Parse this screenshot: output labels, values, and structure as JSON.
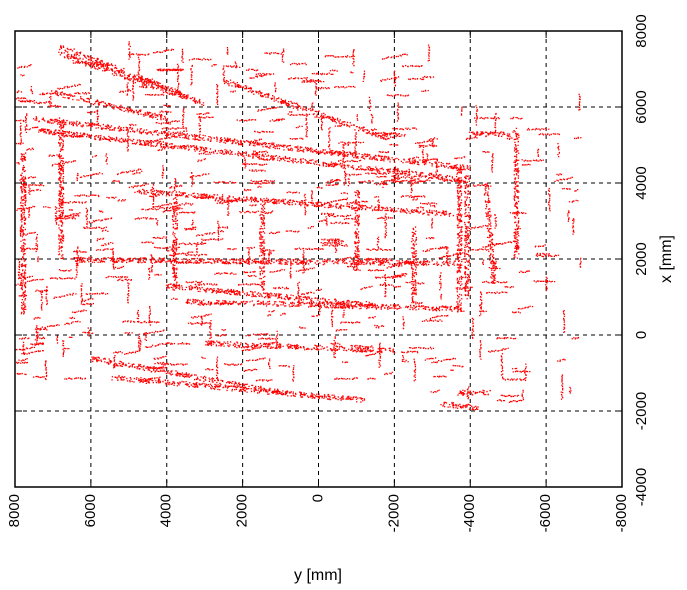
{
  "chart_data": {
    "type": "scatter",
    "title": "",
    "xlabel": "y [mm]",
    "ylabel": "x [mm]",
    "x_axis": {
      "quantity": "y",
      "range": [
        8000,
        -8000
      ],
      "ticks": [
        8000,
        6000,
        4000,
        2000,
        0,
        -2000,
        -4000,
        -6000,
        -8000
      ],
      "tick_labels": [
        "8000",
        "6000",
        "4000",
        "2000",
        "0",
        "-2000",
        "-4000",
        "-6000",
        "-8000"
      ],
      "direction": "decreasing left-to-right"
    },
    "y_axis": {
      "quantity": "x",
      "range": [
        -4000,
        8000
      ],
      "ticks": [
        -4000,
        -2000,
        0,
        2000,
        4000,
        6000,
        8000
      ],
      "tick_labels": [
        "-4000",
        "-2000",
        "0",
        "2000",
        "4000",
        "6000",
        "8000"
      ],
      "position": "right",
      "tick_label_rotation": "vertical"
    },
    "grid": true,
    "grid_style": "dashed",
    "legend": "none",
    "series": [
      {
        "color": "#ff0000",
        "marker": "dot",
        "note_structure": [
          {
            "kind": "line",
            "from": [
              6800,
              7600
            ],
            "to": [
              3500,
              6300
            ]
          },
          {
            "kind": "line",
            "from": [
              6800,
              7400
            ],
            "to": [
              3000,
              6100
            ]
          },
          {
            "kind": "line",
            "from": [
              7000,
              6400
            ],
            "to": [
              4000,
              5700
            ]
          },
          {
            "kind": "line",
            "from": [
              7500,
              5700
            ],
            "to": [
              -4000,
              4400
            ]
          },
          {
            "kind": "line",
            "from": [
              7400,
              5400
            ],
            "to": [
              -3800,
              4100
            ]
          },
          {
            "kind": "line",
            "from": [
              2500,
              6700
            ],
            "to": [
              -1800,
              5200
            ]
          },
          {
            "kind": "line",
            "from": [
              4800,
              3800
            ],
            "to": [
              -3500,
              3200
            ]
          },
          {
            "kind": "line",
            "from": [
              6500,
              2000
            ],
            "to": [
              -3600,
              1900
            ]
          },
          {
            "kind": "line",
            "from": [
              4000,
              1300
            ],
            "to": [
              -1500,
              800
            ]
          },
          {
            "kind": "line",
            "from": [
              3500,
              900
            ],
            "to": [
              -3800,
              700
            ]
          },
          {
            "kind": "line",
            "from": [
              3000,
              -200
            ],
            "to": [
              -2000,
              -400
            ]
          },
          {
            "kind": "line",
            "from": [
              6000,
              -600
            ],
            "to": [
              1000,
              -1500
            ]
          },
          {
            "kind": "line",
            "from": [
              5500,
              -1100
            ],
            "to": [
              -1200,
              -1700
            ]
          },
          {
            "kind": "line",
            "from": [
              -3700,
              4500
            ],
            "to": [
              -3700,
              600
            ]
          },
          {
            "kind": "line",
            "from": [
              -3900,
              4200
            ],
            "to": [
              -3900,
              1000
            ]
          },
          {
            "kind": "line",
            "from": [
              -4000,
              5300
            ],
            "to": [
              -5100,
              5300
            ]
          },
          {
            "kind": "line",
            "from": [
              -5200,
              5400
            ],
            "to": [
              -5200,
              2000
            ]
          },
          {
            "kind": "line",
            "from": [
              -4400,
              4000
            ],
            "to": [
              -4600,
              1400
            ]
          },
          {
            "kind": "line",
            "from": [
              -3700,
              -1500
            ],
            "to": [
              -4500,
              -1500
            ]
          },
          {
            "kind": "line",
            "from": [
              -3200,
              -1800
            ],
            "to": [
              -4200,
              -1900
            ]
          },
          {
            "kind": "line",
            "from": [
              7800,
              4800
            ],
            "to": [
              7800,
              600
            ]
          },
          {
            "kind": "line",
            "from": [
              6800,
              5700
            ],
            "to": [
              6800,
              2000
            ]
          },
          {
            "kind": "line",
            "from": [
              3800,
              3600
            ],
            "to": [
              3800,
              1200
            ]
          },
          {
            "kind": "line",
            "from": [
              1500,
              3400
            ],
            "to": [
              1500,
              1200
            ]
          },
          {
            "kind": "line",
            "from": [
              -1000,
              3800
            ],
            "to": [
              -1000,
              1800
            ]
          },
          {
            "kind": "line",
            "from": [
              -2500,
              2800
            ],
            "to": [
              -2500,
              800
            ]
          },
          {
            "kind": "box",
            "from": [
              8000,
              -1200
            ],
            "to": [
              -3000,
              7500
            ],
            "density": 6
          },
          {
            "kind": "box",
            "from": [
              -3000,
              -2000
            ],
            "to": [
              -6900,
              6200
            ],
            "density": 2
          }
        ]
      }
    ]
  }
}
